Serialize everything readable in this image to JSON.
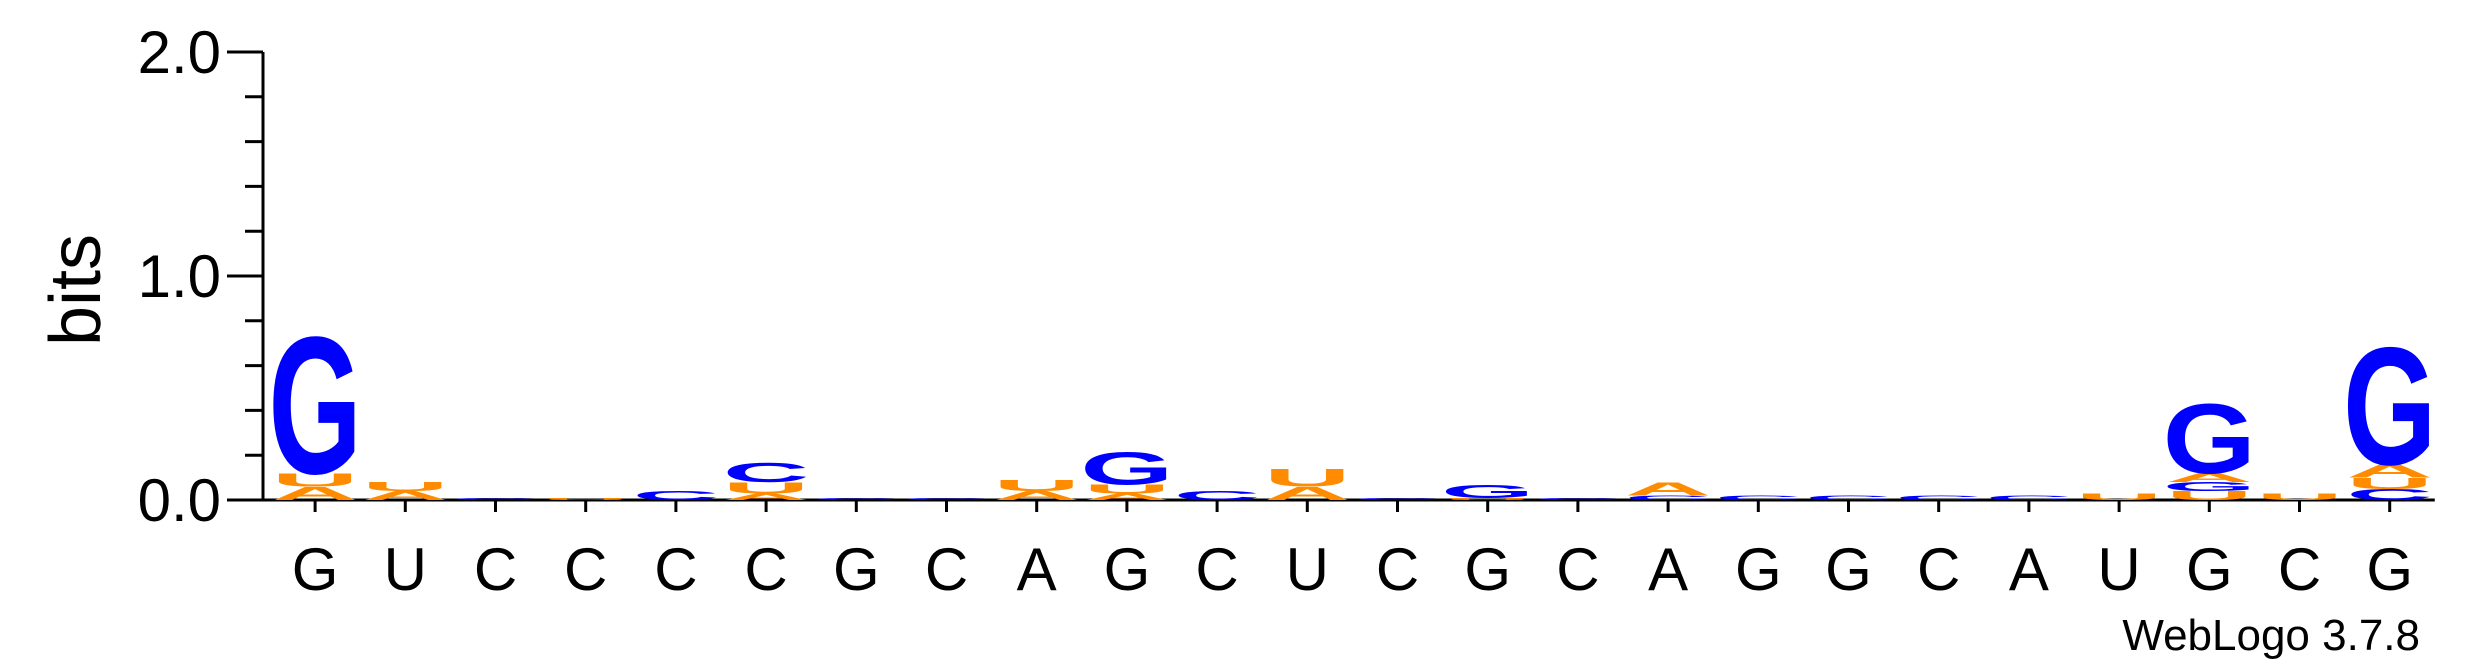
{
  "chart_data": {
    "type": "sequence-logo",
    "ylabel": "bits",
    "ylim": [
      0,
      2.0
    ],
    "y_ticks": [
      "0.0",
      "1.0",
      "2.0"
    ],
    "colors": {
      "G": "#0000ff",
      "C": "#0000ff",
      "A": "#ff8c00",
      "U": "#ff8c00"
    },
    "positions": [
      {
        "label": "G",
        "stack": [
          {
            "letter": "A",
            "bits": 0.06
          },
          {
            "letter": "U",
            "bits": 0.06
          },
          {
            "letter": "G",
            "bits": 0.63
          }
        ]
      },
      {
        "label": "U",
        "stack": [
          {
            "letter": "A",
            "bits": 0.04
          },
          {
            "letter": "U",
            "bits": 0.04
          }
        ]
      },
      {
        "label": "C",
        "stack": [
          {
            "letter": "C",
            "bits": 0.01
          }
        ]
      },
      {
        "label": "C",
        "stack": [
          {
            "letter": "U",
            "bits": 0.01
          }
        ]
      },
      {
        "label": "C",
        "stack": [
          {
            "letter": "C",
            "bits": 0.04
          }
        ]
      },
      {
        "label": "C",
        "stack": [
          {
            "letter": "A",
            "bits": 0.03
          },
          {
            "letter": "U",
            "bits": 0.05
          },
          {
            "letter": "C",
            "bits": 0.09
          }
        ]
      },
      {
        "label": "G",
        "stack": [
          {
            "letter": "C",
            "bits": 0.01
          }
        ]
      },
      {
        "label": "C",
        "stack": [
          {
            "letter": "C",
            "bits": 0.01
          }
        ]
      },
      {
        "label": "A",
        "stack": [
          {
            "letter": "A",
            "bits": 0.04
          },
          {
            "letter": "U",
            "bits": 0.05
          }
        ]
      },
      {
        "label": "G",
        "stack": [
          {
            "letter": "A",
            "bits": 0.03
          },
          {
            "letter": "U",
            "bits": 0.04
          },
          {
            "letter": "G",
            "bits": 0.15
          }
        ]
      },
      {
        "label": "C",
        "stack": [
          {
            "letter": "C",
            "bits": 0.04
          }
        ]
      },
      {
        "label": "U",
        "stack": [
          {
            "letter": "A",
            "bits": 0.06
          },
          {
            "letter": "U",
            "bits": 0.08
          }
        ]
      },
      {
        "label": "C",
        "stack": [
          {
            "letter": "C",
            "bits": 0.01
          }
        ]
      },
      {
        "label": "G",
        "stack": [
          {
            "letter": "U",
            "bits": 0.01
          },
          {
            "letter": "G",
            "bits": 0.06
          }
        ]
      },
      {
        "label": "C",
        "stack": [
          {
            "letter": "C",
            "bits": 0.01
          }
        ]
      },
      {
        "label": "A",
        "stack": [
          {
            "letter": "C",
            "bits": 0.02
          },
          {
            "letter": "A",
            "bits": 0.06
          }
        ]
      },
      {
        "label": "G",
        "stack": [
          {
            "letter": "C",
            "bits": 0.02
          }
        ]
      },
      {
        "label": "G",
        "stack": [
          {
            "letter": "C",
            "bits": 0.02
          }
        ]
      },
      {
        "label": "C",
        "stack": [
          {
            "letter": "C",
            "bits": 0.02
          }
        ]
      },
      {
        "label": "A",
        "stack": [
          {
            "letter": "C",
            "bits": 0.02
          }
        ]
      },
      {
        "label": "U",
        "stack": [
          {
            "letter": "U",
            "bits": 0.03
          }
        ]
      },
      {
        "label": "G",
        "stack": [
          {
            "letter": "U",
            "bits": 0.04
          },
          {
            "letter": "G",
            "bits": 0.04
          },
          {
            "letter": "A",
            "bits": 0.04
          },
          {
            "letter": "G",
            "bits": 0.32
          }
        ]
      },
      {
        "label": "C",
        "stack": [
          {
            "letter": "U",
            "bits": 0.03
          }
        ]
      },
      {
        "label": "G",
        "stack": [
          {
            "letter": "C",
            "bits": 0.05
          },
          {
            "letter": "U",
            "bits": 0.05
          },
          {
            "letter": "A",
            "bits": 0.06
          },
          {
            "letter": "G",
            "bits": 0.54
          }
        ]
      }
    ]
  },
  "credit": "WebLogo 3.7.8"
}
